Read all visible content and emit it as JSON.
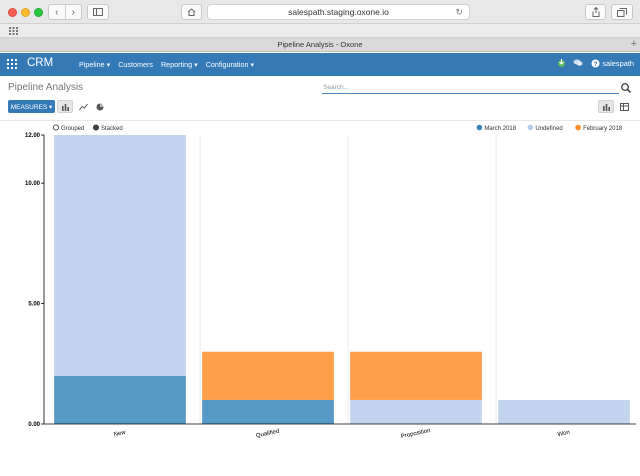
{
  "browser": {
    "url": "salespath.staging.oxone.io",
    "tab_title": "Pipeline Analysis - Oxone"
  },
  "app": {
    "brand": "CRM",
    "menu": [
      "Pipeline ▾",
      "Customers",
      "Reporting ▾",
      "Configuration ▾"
    ],
    "user": "salespath",
    "accent": "#337ab7"
  },
  "control_panel": {
    "title": "Pipeline Analysis",
    "search_placeholder": "Search...",
    "measures_label": "MEASURES ▾"
  },
  "chart_data": {
    "type": "bar",
    "stacked": true,
    "categories": [
      "New",
      "Qualified",
      "Proposition",
      "Won"
    ],
    "series": [
      {
        "name": "March 2018",
        "color": "#1f77b4",
        "values": [
          2,
          1,
          0,
          0
        ]
      },
      {
        "name": "Undefined",
        "color": "#aec7e8",
        "values": [
          10,
          0,
          1,
          1
        ]
      },
      {
        "name": "February 2018",
        "color": "#ff7f0e",
        "values": [
          0,
          2,
          2,
          0
        ]
      }
    ],
    "ylim": [
      0,
      12
    ],
    "yticks": [
      "0.00",
      "5.00",
      "10.00",
      "12.00"
    ],
    "mode_options": [
      "Grouped",
      "Stacked"
    ],
    "selected_mode": "Stacked",
    "legend_position": "top-right"
  }
}
